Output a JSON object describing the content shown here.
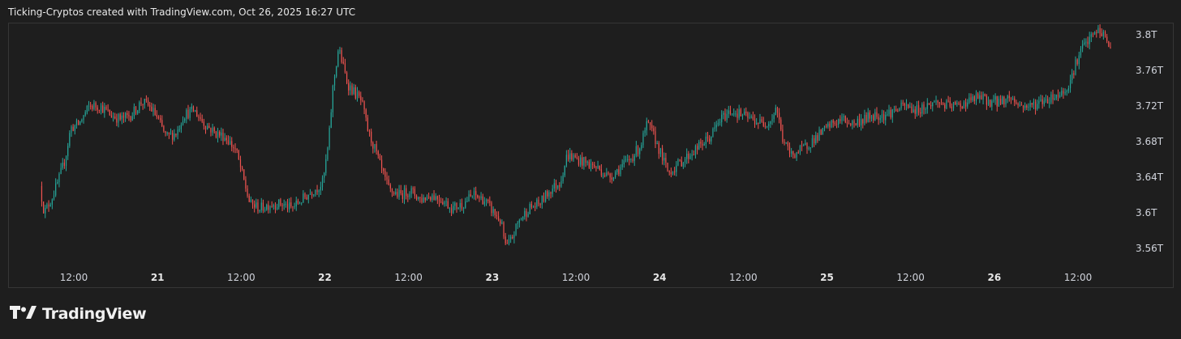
{
  "header": {
    "caption": "Ticking-Cryptos created with TradingView.com, Oct 26, 2025 16:27 UTC"
  },
  "brand": {
    "name": "TradingView",
    "logo_icon": "tradingview-logo-icon"
  },
  "colors": {
    "background": "#1e1e1e",
    "up": "#26a69a",
    "down": "#ef5350",
    "axis_text": "#d1d4dc",
    "border": "#363636"
  },
  "chart_data": {
    "type": "candlestick",
    "title": "",
    "xlabel": "",
    "ylabel": "",
    "ylim": [
      3.545,
      3.82
    ],
    "y_ticks": [
      {
        "value": 3.8,
        "label": "3.8T"
      },
      {
        "value": 3.76,
        "label": "3.76T"
      },
      {
        "value": 3.72,
        "label": "3.72T"
      },
      {
        "value": 3.68,
        "label": "3.68T"
      },
      {
        "value": 3.64,
        "label": "3.64T"
      },
      {
        "value": 3.6,
        "label": "3.6T"
      },
      {
        "value": 3.56,
        "label": "3.56T"
      }
    ],
    "x_ticks": [
      {
        "hour": 12,
        "label": "12:00",
        "bold": false
      },
      {
        "hour": 24,
        "label": "21",
        "bold": true
      },
      {
        "hour": 36,
        "label": "12:00",
        "bold": false
      },
      {
        "hour": 48,
        "label": "22",
        "bold": true
      },
      {
        "hour": 60,
        "label": "12:00",
        "bold": false
      },
      {
        "hour": 72,
        "label": "23",
        "bold": true
      },
      {
        "hour": 84,
        "label": "12:00",
        "bold": false
      },
      {
        "hour": 96,
        "label": "24",
        "bold": true
      },
      {
        "hour": 108,
        "label": "12:00",
        "bold": false
      },
      {
        "hour": 120,
        "label": "25",
        "bold": true
      },
      {
        "hour": 132,
        "label": "12:00",
        "bold": false
      },
      {
        "hour": 144,
        "label": "26",
        "bold": true
      },
      {
        "hour": 156,
        "label": "12:00",
        "bold": false
      }
    ],
    "x_range_hours": [
      7.4,
      160.8
    ],
    "series": [
      {
        "anchors": [
          [
            7.4,
            3.63
          ],
          [
            8.0,
            3.6
          ],
          [
            9.0,
            3.615
          ],
          [
            10.0,
            3.635
          ],
          [
            11.0,
            3.66
          ],
          [
            11.8,
            3.695
          ],
          [
            13.0,
            3.7
          ],
          [
            14.5,
            3.72
          ],
          [
            16.0,
            3.72
          ],
          [
            17.5,
            3.71
          ],
          [
            19.0,
            3.705
          ],
          [
            20.5,
            3.71
          ],
          [
            22.0,
            3.725
          ],
          [
            23.0,
            3.72
          ],
          [
            24.0,
            3.71
          ],
          [
            25.5,
            3.685
          ],
          [
            27.0,
            3.69
          ],
          [
            28.0,
            3.71
          ],
          [
            29.5,
            3.715
          ],
          [
            31.0,
            3.7
          ],
          [
            32.5,
            3.69
          ],
          [
            34.0,
            3.685
          ],
          [
            35.5,
            3.67
          ],
          [
            36.5,
            3.64
          ],
          [
            37.5,
            3.61
          ],
          [
            39.0,
            3.605
          ],
          [
            40.5,
            3.61
          ],
          [
            42.0,
            3.61
          ],
          [
            43.5,
            3.605
          ],
          [
            45.0,
            3.615
          ],
          [
            46.5,
            3.625
          ],
          [
            47.5,
            3.63
          ],
          [
            48.0,
            3.635
          ],
          [
            48.8,
            3.68
          ],
          [
            49.4,
            3.74
          ],
          [
            50.2,
            3.785
          ],
          [
            50.7,
            3.77
          ],
          [
            51.5,
            3.745
          ],
          [
            52.5,
            3.735
          ],
          [
            53.5,
            3.725
          ],
          [
            54.5,
            3.69
          ],
          [
            55.5,
            3.67
          ],
          [
            56.5,
            3.645
          ],
          [
            57.5,
            3.625
          ],
          [
            59.0,
            3.62
          ],
          [
            60.5,
            3.625
          ],
          [
            62.0,
            3.615
          ],
          [
            63.5,
            3.62
          ],
          [
            65.0,
            3.615
          ],
          [
            66.5,
            3.605
          ],
          [
            68.0,
            3.61
          ],
          [
            69.5,
            3.62
          ],
          [
            71.0,
            3.615
          ],
          [
            72.5,
            3.6
          ],
          [
            73.5,
            3.59
          ],
          [
            74.2,
            3.56
          ],
          [
            75.0,
            3.57
          ],
          [
            76.0,
            3.59
          ],
          [
            77.5,
            3.605
          ],
          [
            79.0,
            3.61
          ],
          [
            80.5,
            3.625
          ],
          [
            82.0,
            3.635
          ],
          [
            83.0,
            3.665
          ],
          [
            84.5,
            3.66
          ],
          [
            86.0,
            3.655
          ],
          [
            87.5,
            3.65
          ],
          [
            89.0,
            3.64
          ],
          [
            90.5,
            3.65
          ],
          [
            92.0,
            3.66
          ],
          [
            93.5,
            3.675
          ],
          [
            94.5,
            3.7
          ],
          [
            95.5,
            3.685
          ],
          [
            96.5,
            3.665
          ],
          [
            97.5,
            3.645
          ],
          [
            99.0,
            3.655
          ],
          [
            100.5,
            3.665
          ],
          [
            102.0,
            3.675
          ],
          [
            103.5,
            3.685
          ],
          [
            105.0,
            3.705
          ],
          [
            106.5,
            3.715
          ],
          [
            108.0,
            3.71
          ],
          [
            109.5,
            3.705
          ],
          [
            111.0,
            3.7
          ],
          [
            112.3,
            3.705
          ],
          [
            113.0,
            3.72
          ],
          [
            113.8,
            3.685
          ],
          [
            115.0,
            3.665
          ],
          [
            116.5,
            3.67
          ],
          [
            118.0,
            3.68
          ],
          [
            119.5,
            3.69
          ],
          [
            121.0,
            3.7
          ],
          [
            122.5,
            3.705
          ],
          [
            124.0,
            3.7
          ],
          [
            125.5,
            3.705
          ],
          [
            127.0,
            3.71
          ],
          [
            128.5,
            3.71
          ],
          [
            130.0,
            3.715
          ],
          [
            131.5,
            3.72
          ],
          [
            133.0,
            3.715
          ],
          [
            134.5,
            3.72
          ],
          [
            136.0,
            3.725
          ],
          [
            137.5,
            3.72
          ],
          [
            139.0,
            3.72
          ],
          [
            140.5,
            3.725
          ],
          [
            142.0,
            3.73
          ],
          [
            143.5,
            3.725
          ],
          [
            145.0,
            3.725
          ],
          [
            146.5,
            3.73
          ],
          [
            148.0,
            3.72
          ],
          [
            149.5,
            3.72
          ],
          [
            151.0,
            3.725
          ],
          [
            152.5,
            3.73
          ],
          [
            154.0,
            3.735
          ],
          [
            155.0,
            3.745
          ],
          [
            155.8,
            3.765
          ],
          [
            156.8,
            3.785
          ],
          [
            158.0,
            3.795
          ],
          [
            159.0,
            3.805
          ],
          [
            160.0,
            3.8
          ],
          [
            160.8,
            3.785
          ]
        ]
      }
    ],
    "grid": false,
    "legend": "none"
  }
}
